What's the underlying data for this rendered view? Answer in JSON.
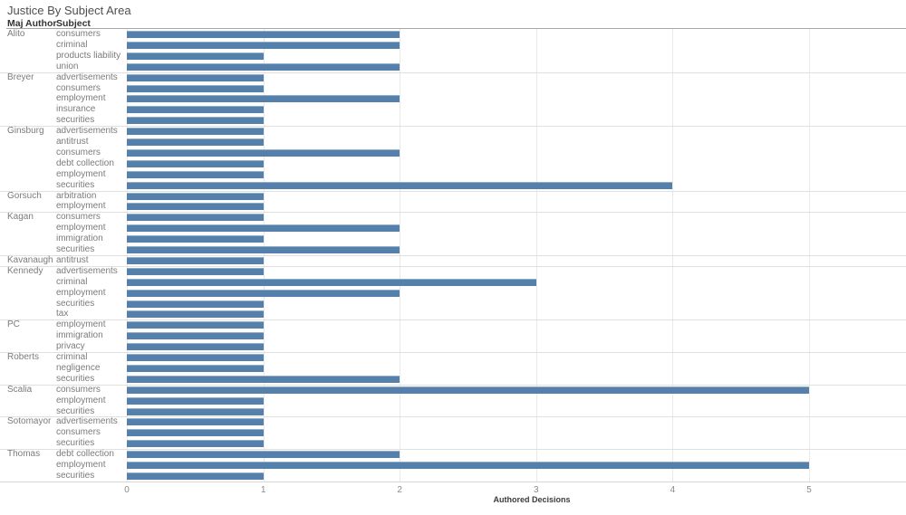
{
  "title": "Justice By Subject Area",
  "header": {
    "author_col": "Maj Author",
    "subject_col": "Subject"
  },
  "axis": {
    "label": "Authored Decisions"
  },
  "colors": {
    "bar": "#5480ab",
    "grid": "#e9e9e9",
    "group_divider": "#e0e0e0",
    "header_rule": "#a6a6a6",
    "axis_line": "#d8d8d8",
    "title_text": "#4f4f4f",
    "header_text": "#333333",
    "row_text": "#7b7b7b",
    "tick_text": "#8a8a8a",
    "axis_title_text": "#3b3b3b"
  },
  "chart_data": {
    "type": "bar",
    "orientation": "horizontal",
    "title": "Justice By Subject Area",
    "xlabel": "Authored Decisions",
    "ylabel": "",
    "xlim": [
      0,
      5.7
    ],
    "x_ticks": [
      0,
      1,
      2,
      3,
      4,
      5
    ],
    "grid": true,
    "legend": "none",
    "groups": [
      {
        "author": "Alito",
        "rows": [
          {
            "subject": "consumers",
            "value": 2
          },
          {
            "subject": "criminal",
            "value": 2
          },
          {
            "subject": "products liability",
            "value": 1
          },
          {
            "subject": "union",
            "value": 2
          }
        ]
      },
      {
        "author": "Breyer",
        "rows": [
          {
            "subject": "advertisements",
            "value": 1
          },
          {
            "subject": "consumers",
            "value": 1
          },
          {
            "subject": "employment",
            "value": 2
          },
          {
            "subject": "insurance",
            "value": 1
          },
          {
            "subject": "securities",
            "value": 1
          }
        ]
      },
      {
        "author": "Ginsburg",
        "rows": [
          {
            "subject": "advertisements",
            "value": 1
          },
          {
            "subject": "antitrust",
            "value": 1
          },
          {
            "subject": "consumers",
            "value": 2
          },
          {
            "subject": "debt collection",
            "value": 1
          },
          {
            "subject": "employment",
            "value": 1
          },
          {
            "subject": "securities",
            "value": 4
          }
        ]
      },
      {
        "author": "Gorsuch",
        "rows": [
          {
            "subject": "arbitration",
            "value": 1
          },
          {
            "subject": "employment",
            "value": 1
          }
        ]
      },
      {
        "author": "Kagan",
        "rows": [
          {
            "subject": "consumers",
            "value": 1
          },
          {
            "subject": "employment",
            "value": 2
          },
          {
            "subject": "immigration",
            "value": 1
          },
          {
            "subject": "securities",
            "value": 2
          }
        ]
      },
      {
        "author": "Kavanaugh",
        "rows": [
          {
            "subject": "antitrust",
            "value": 1
          }
        ]
      },
      {
        "author": "Kennedy",
        "rows": [
          {
            "subject": "advertisements",
            "value": 1
          },
          {
            "subject": "criminal",
            "value": 3
          },
          {
            "subject": "employment",
            "value": 2
          },
          {
            "subject": "securities",
            "value": 1
          },
          {
            "subject": "tax",
            "value": 1
          }
        ]
      },
      {
        "author": "PC",
        "rows": [
          {
            "subject": "employment",
            "value": 1
          },
          {
            "subject": "immigration",
            "value": 1
          },
          {
            "subject": "privacy",
            "value": 1
          }
        ]
      },
      {
        "author": "Roberts",
        "rows": [
          {
            "subject": "criminal",
            "value": 1
          },
          {
            "subject": "negligence",
            "value": 1
          },
          {
            "subject": "securities",
            "value": 2
          }
        ]
      },
      {
        "author": "Scalia",
        "rows": [
          {
            "subject": "consumers",
            "value": 5
          },
          {
            "subject": "employment",
            "value": 1
          },
          {
            "subject": "securities",
            "value": 1
          }
        ]
      },
      {
        "author": "Sotomayor",
        "rows": [
          {
            "subject": "advertisements",
            "value": 1
          },
          {
            "subject": "consumers",
            "value": 1
          },
          {
            "subject": "securities",
            "value": 1
          }
        ]
      },
      {
        "author": "Thomas",
        "rows": [
          {
            "subject": "debt collection",
            "value": 2
          },
          {
            "subject": "employment",
            "value": 5
          },
          {
            "subject": "securities",
            "value": 1
          }
        ]
      }
    ]
  }
}
